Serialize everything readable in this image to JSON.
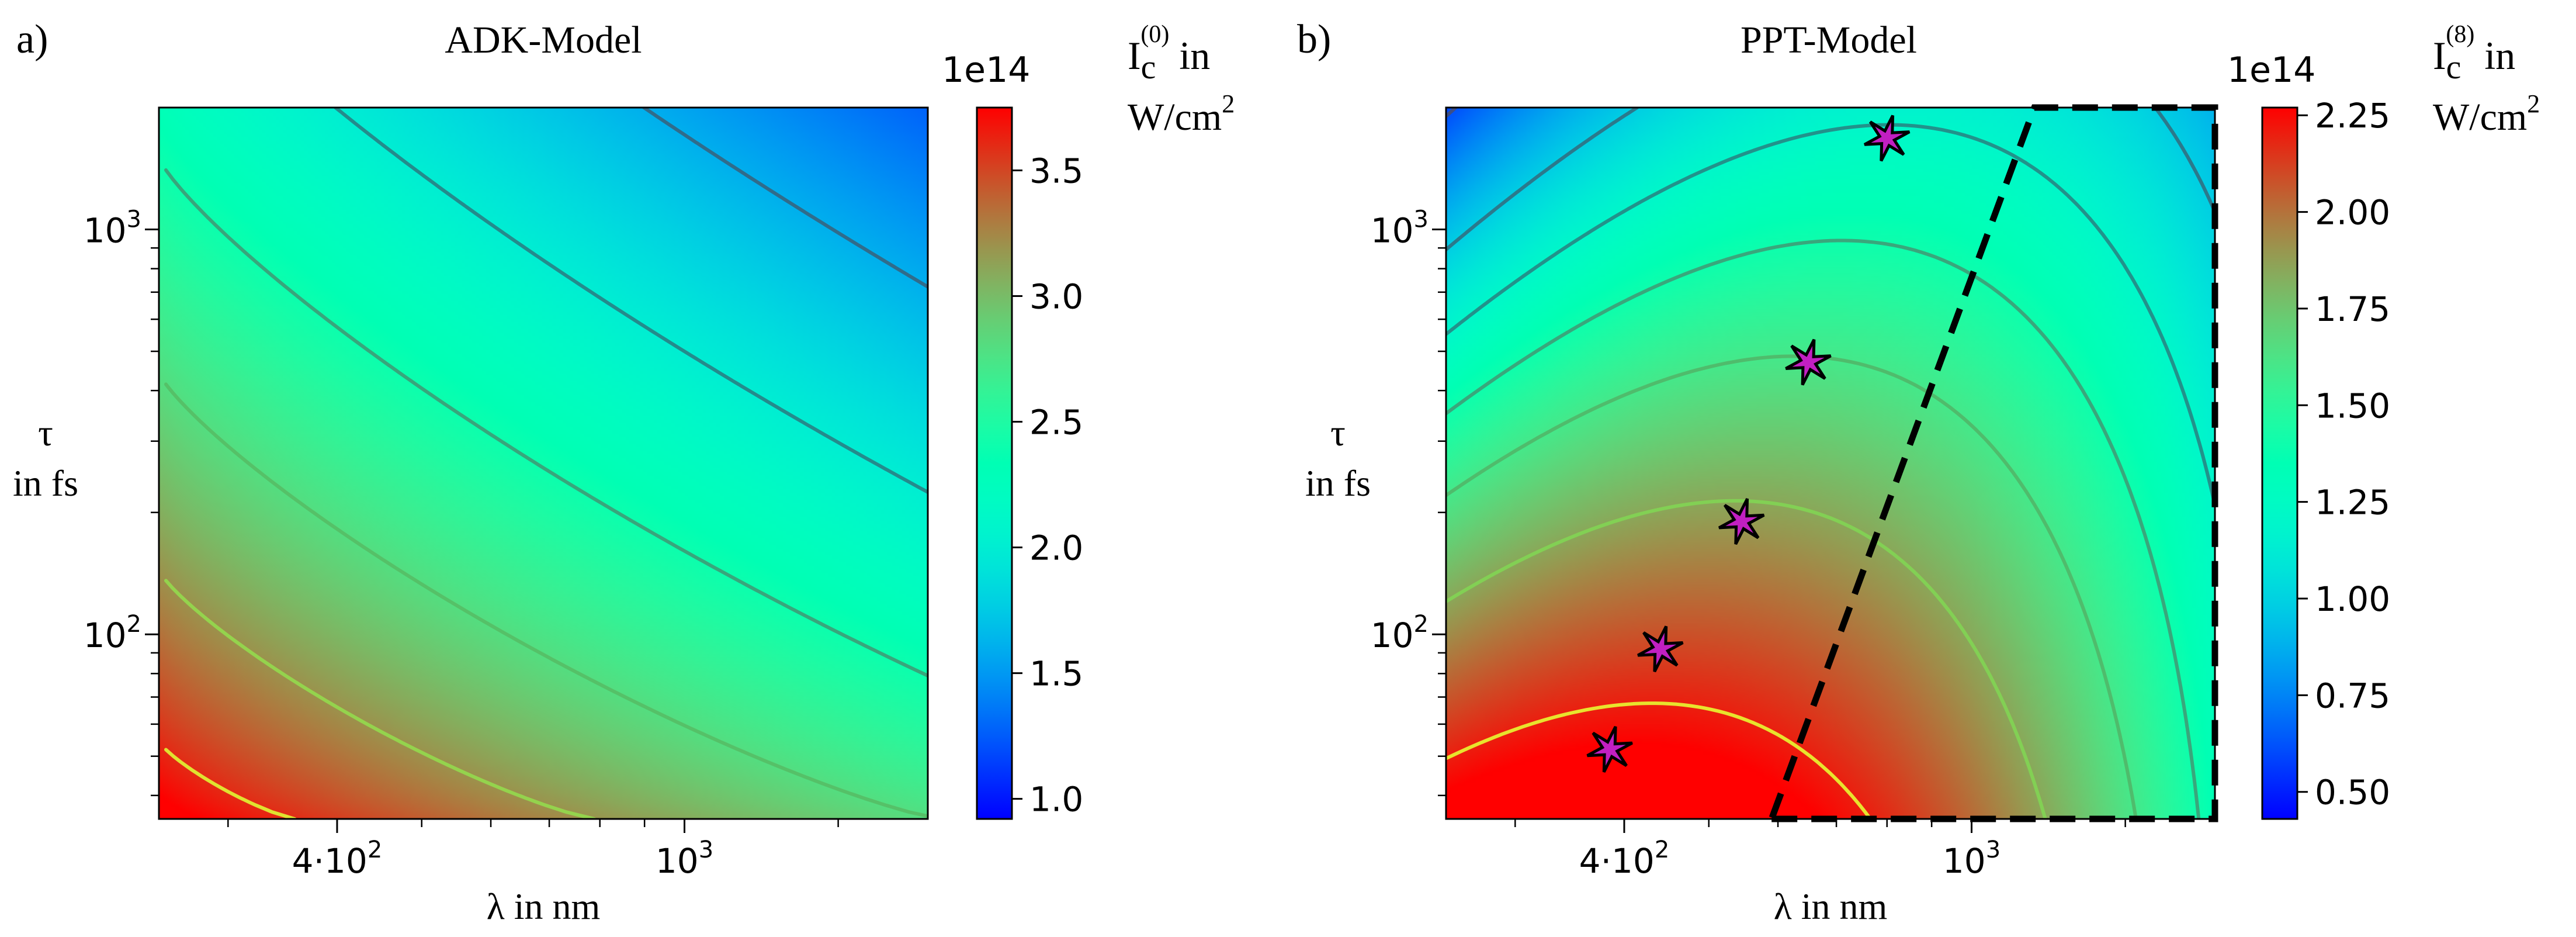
{
  "chart_data": [
    {
      "type": "heatmap",
      "panel_label": "a)",
      "title": "ADK-Model",
      "xlabel": "λ in nm",
      "ylabel_line1": "τ",
      "ylabel_line2": "in fs",
      "x_scale": "log",
      "y_scale": "log",
      "xlim": [
        250,
        1900
      ],
      "ylim": [
        35,
        2000
      ],
      "x_ticks": [
        {
          "value": 400,
          "base": "4·10",
          "exp": "2"
        },
        {
          "value": 1000,
          "base": "10",
          "exp": "3"
        }
      ],
      "y_ticks": [
        {
          "value": 100,
          "base": "10",
          "exp": "2"
        },
        {
          "value": 1000,
          "base": "10",
          "exp": "3"
        }
      ],
      "colorbar": {
        "offset_label": "1e14",
        "title_main": "I",
        "title_sub": "c",
        "title_sup": "(0)",
        "title_suffix": " in",
        "title_unit": "W/cm",
        "title_unit_sup": "2",
        "range": [
          0.92,
          3.75
        ],
        "ticks": [
          1.0,
          1.5,
          2.0,
          2.5,
          3.0,
          3.5
        ],
        "tick_labels": [
          "1.0",
          "1.5",
          "2.0",
          "2.5",
          "3.0",
          "3.5"
        ]
      },
      "contour_levels": [
        3.6,
        3.2,
        2.8,
        2.4,
        2.0,
        1.6,
        1.2
      ],
      "field": {
        "model": "adk",
        "A": 3.85,
        "B": 1.15,
        "C": 0.97
      }
    },
    {
      "type": "heatmap",
      "panel_label": "b)",
      "title": "PPT-Model",
      "xlabel": "λ in nm",
      "ylabel_line1": "τ",
      "ylabel_line2": "in fs",
      "x_scale": "log",
      "y_scale": "log",
      "xlim": [
        250,
        1900
      ],
      "ylim": [
        35,
        2000
      ],
      "x_ticks": [
        {
          "value": 400,
          "base": "4·10",
          "exp": "2"
        },
        {
          "value": 1000,
          "base": "10",
          "exp": "3"
        }
      ],
      "y_ticks": [
        {
          "value": 100,
          "base": "10",
          "exp": "2"
        },
        {
          "value": 1000,
          "base": "10",
          "exp": "3"
        }
      ],
      "colorbar": {
        "offset_label": "1e14",
        "title_main": "I",
        "title_sub": "c",
        "title_sup": "(8)",
        "title_suffix": " in",
        "title_unit": "W/cm",
        "title_unit_sup": "2",
        "range": [
          0.43,
          2.27
        ],
        "ticks": [
          0.5,
          0.75,
          1.0,
          1.25,
          1.5,
          1.75,
          2.0,
          2.25
        ],
        "tick_labels": [
          "0.50",
          "0.75",
          "1.00",
          "1.25",
          "1.50",
          "1.75",
          "2.00",
          "2.25"
        ]
      },
      "contour_levels": [
        2.2,
        1.85,
        1.6,
        1.4,
        1.2,
        0.98,
        0.62,
        0.5
      ],
      "field": {
        "model": "ppt",
        "A": 2.4,
        "B": 0.7,
        "k": 0.19,
        "lam0": 380,
        "s": 0.025
      },
      "stars": [
        {
          "lambda": 385,
          "tau": 52
        },
        {
          "lambda": 440,
          "tau": 92
        },
        {
          "lambda": 545,
          "tau": 190
        },
        {
          "lambda": 650,
          "tau": 470
        },
        {
          "lambda": 800,
          "tau": 1680
        }
      ],
      "dashed_region": {
        "corners": [
          {
            "lambda": 590,
            "tau": 35
          },
          {
            "lambda": 1900,
            "tau": 35
          },
          {
            "lambda": 1900,
            "tau": 2000
          },
          {
            "lambda": 1180,
            "tau": 2000
          }
        ]
      }
    }
  ]
}
